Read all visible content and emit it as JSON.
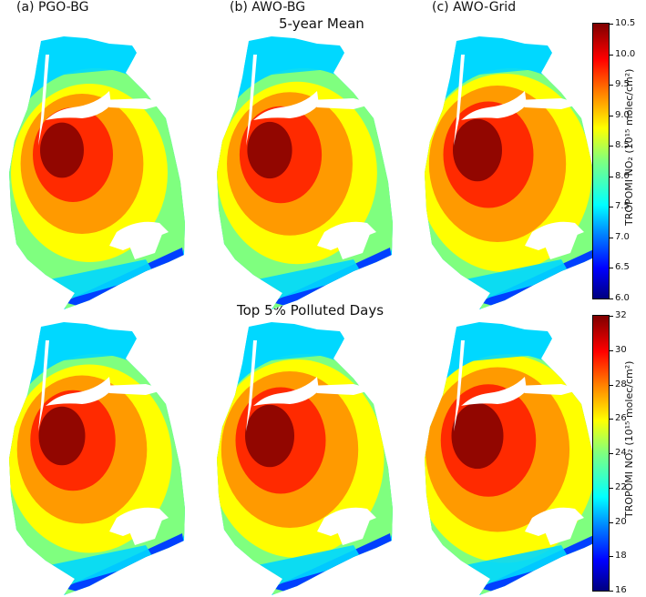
{
  "columns": [
    {
      "id": "a",
      "label": "(a) PGO-BG"
    },
    {
      "id": "b",
      "label": "(b) AWO-BG"
    },
    {
      "id": "c",
      "label": "(c) AWO-Grid"
    }
  ],
  "rows": [
    {
      "id": "mean",
      "label": "5-year Mean"
    },
    {
      "id": "top5",
      "label": "Top 5% Polluted Days"
    }
  ],
  "colorbars": [
    {
      "id": "mean",
      "label": "TROPOMI NO₂ (10¹⁵ molec/cm²)",
      "colormap": "jet",
      "min": 6.0,
      "max": 10.5,
      "ticks": [
        "6.0",
        "6.5",
        "7.0",
        "7.5",
        "8.0",
        "8.5",
        "9.0",
        "9.5",
        "10.0",
        "10.5"
      ]
    },
    {
      "id": "top5",
      "label": "TROPOMI NO₂ (10¹⁵ molec/cm²)",
      "colormap": "jet",
      "min": 16,
      "max": 32,
      "ticks": [
        "16",
        "18",
        "20",
        "22",
        "24",
        "26",
        "28",
        "30",
        "32"
      ]
    }
  ],
  "colors": {
    "hotspot": "#7f0000",
    "high": "#ff2a00",
    "mid_high": "#ff9a00",
    "mid": "#ffff00",
    "mid_low": "#7fff7f",
    "low": "#00d8ff",
    "lowest": "#0040ff",
    "water": "#ffffff"
  },
  "maps": [
    {
      "row": "mean",
      "col": "a",
      "intensity": 0.8
    },
    {
      "row": "mean",
      "col": "b",
      "intensity": 0.82
    },
    {
      "row": "mean",
      "col": "c",
      "intensity": 0.9
    },
    {
      "row": "top5",
      "col": "a",
      "intensity": 0.85
    },
    {
      "row": "top5",
      "col": "b",
      "intensity": 0.9
    },
    {
      "row": "top5",
      "col": "c",
      "intensity": 0.95
    }
  ]
}
